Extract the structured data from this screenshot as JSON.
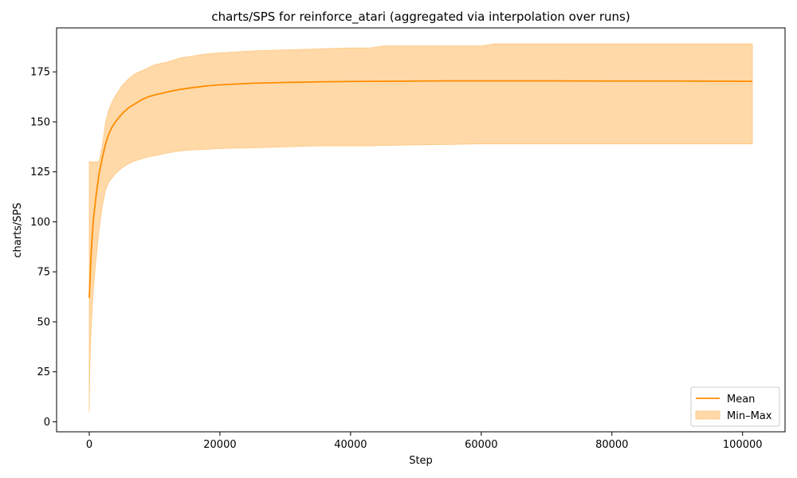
{
  "chart_data": {
    "type": "line",
    "title": "charts/SPS for reinforce_atari (aggregated via interpolation over runs)",
    "xlabel": "Step",
    "ylabel": "charts/SPS",
    "xlim": [
      -5000,
      106500
    ],
    "ylim": [
      -5,
      197
    ],
    "xticks": [
      0,
      20000,
      40000,
      60000,
      80000,
      100000
    ],
    "yticks": [
      0,
      25,
      50,
      75,
      100,
      125,
      150,
      175
    ],
    "grid": false,
    "legend_position": "lower-right",
    "series": [
      {
        "name": "Mean",
        "color": "#ff8c00",
        "x": [
          0,
          300,
          600,
          1000,
          1500,
          2000,
          2500,
          3000,
          3500,
          4000,
          5000,
          6000,
          7000,
          8000,
          9000,
          10000,
          12000,
          14000,
          16000,
          18000,
          20000,
          25000,
          30000,
          35000,
          40000,
          45000,
          50000,
          55000,
          60000,
          65000,
          70000,
          80000,
          90000,
          100000,
          101500
        ],
        "y": [
          62,
          85,
          100,
          112,
          124,
          132,
          139,
          144,
          147.5,
          150,
          154,
          157,
          159,
          161,
          162.5,
          163.5,
          165,
          166.3,
          167.2,
          168,
          168.5,
          169.3,
          169.7,
          170,
          170.2,
          170.3,
          170.4,
          170.5,
          170.5,
          170.5,
          170.5,
          170.4,
          170.4,
          170.3,
          170.3
        ]
      },
      {
        "name": "Min–Max",
        "color": "#ffd9a8",
        "x": [
          0,
          100,
          300,
          600,
          1000,
          1500,
          2000,
          2500,
          3000,
          3500,
          4000,
          5000,
          6000,
          7000,
          8000,
          9000,
          10000,
          12000,
          14000,
          16000,
          18000,
          20000,
          25000,
          30000,
          35000,
          40000,
          43000,
          45000,
          50000,
          55000,
          60000,
          62000,
          70000,
          80000,
          90000,
          100000,
          101500
        ],
        "y_min": [
          5,
          30,
          48,
          65,
          80,
          96,
          108,
          116,
          120,
          122,
          124,
          127,
          129,
          130.5,
          131.5,
          132.5,
          133,
          134.5,
          135.5,
          136,
          136.3,
          136.7,
          137,
          137.5,
          138,
          138,
          138,
          138.2,
          138.5,
          138.7,
          139,
          139,
          139,
          139,
          139,
          139,
          139
        ],
        "y_max": [
          130,
          130,
          130,
          130,
          130,
          130,
          138,
          150,
          156,
          160,
          163,
          168,
          171.5,
          174,
          175.5,
          177,
          178.5,
          180,
          182,
          183,
          184,
          184.5,
          185.5,
          186,
          186.5,
          187,
          187,
          188,
          188,
          188,
          188,
          189,
          189,
          189,
          189,
          189,
          189
        ]
      }
    ]
  },
  "legend": {
    "mean_label": "Mean",
    "minmax_label": "Min–Max"
  }
}
